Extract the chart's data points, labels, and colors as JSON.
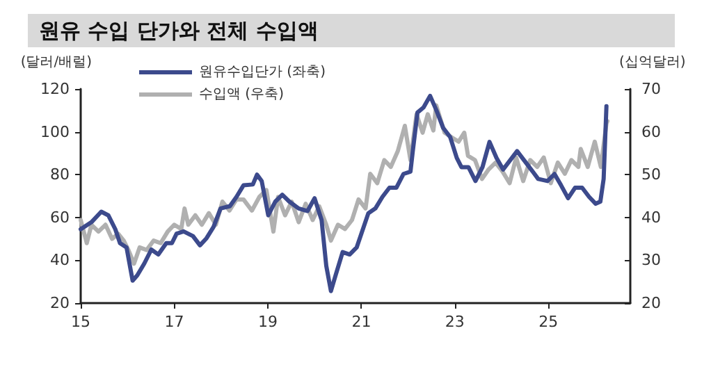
{
  "chart_data": {
    "type": "line",
    "title": "원유 수입 단가와 전체 수입액",
    "ylabel": "(달러/배럴)",
    "y2label": "(십억달러)",
    "xlim": [
      2015,
      2026.75
    ],
    "xticks": [
      {
        "value": 2015,
        "label": "15"
      },
      {
        "value": 2017,
        "label": "17"
      },
      {
        "value": 2019,
        "label": "19"
      },
      {
        "value": 2021,
        "label": "21"
      },
      {
        "value": 2023,
        "label": "23"
      },
      {
        "value": 2025,
        "label": "25"
      }
    ],
    "ylim": [
      20,
      120
    ],
    "yticks": [
      20,
      40,
      60,
      80,
      100,
      120
    ],
    "y2lim": [
      20,
      70
    ],
    "y2ticks": [
      20,
      30,
      40,
      50,
      60,
      70
    ],
    "legend": "top left",
    "grid": false,
    "marker": "none",
    "line_style": "solid",
    "series": [
      {
        "name": "수입액 (우축)",
        "color": "#b0b0b0",
        "axis": "y2",
        "x": [
          2015.0,
          2015.13,
          2015.23,
          2015.38,
          2015.53,
          2015.67,
          2015.8,
          2015.92,
          2016.02,
          2016.14,
          2016.26,
          2016.41,
          2016.56,
          2016.71,
          2016.86,
          2017.0,
          2017.15,
          2017.22,
          2017.3,
          2017.45,
          2017.59,
          2017.74,
          2017.89,
          2018.03,
          2018.18,
          2018.33,
          2018.48,
          2018.66,
          2018.82,
          2018.97,
          2019.12,
          2019.22,
          2019.37,
          2019.51,
          2019.66,
          2019.81,
          2019.96,
          2020.1,
          2020.25,
          2020.35,
          2020.5,
          2020.65,
          2020.8,
          2020.94,
          2021.09,
          2021.19,
          2021.34,
          2021.49,
          2021.63,
          2021.78,
          2021.93,
          2022.05,
          2022.18,
          2022.31,
          2022.42,
          2022.54,
          2022.6,
          2022.78,
          2022.93,
          2023.08,
          2023.2,
          2023.28,
          2023.43,
          2023.58,
          2023.72,
          2023.87,
          2024.02,
          2024.17,
          2024.31,
          2024.46,
          2024.61,
          2024.76,
          2024.9,
          2025.05,
          2025.2,
          2025.35,
          2025.49,
          2025.64,
          2025.69,
          2025.84,
          2025.99,
          2026.12,
          2026.24,
          2026.26
        ],
        "values": [
          39.4,
          34,
          38.3,
          36.7,
          38.3,
          35,
          36.2,
          34.6,
          32.4,
          29.2,
          33,
          32.4,
          34.6,
          34,
          36.7,
          38.3,
          37.3,
          42.1,
          38.3,
          40.5,
          38.3,
          41,
          38.3,
          43.7,
          41.6,
          44.2,
          44.2,
          41.6,
          44.8,
          46.4,
          36.7,
          44.8,
          40.5,
          43.7,
          38.9,
          43.2,
          39.4,
          42.6,
          38.3,
          34.6,
          38.3,
          37.3,
          39.4,
          44.2,
          42.1,
          50.2,
          48,
          53.4,
          51.8,
          55.5,
          61.4,
          53.4,
          64.1,
          59.8,
          64.1,
          60.3,
          66.2,
          59.8,
          58.7,
          57.7,
          59.8,
          54.4,
          53.4,
          49,
          51.2,
          52.8,
          50.7,
          48,
          54,
          48.5,
          53.4,
          51.8,
          54,
          48,
          52.8,
          50.2,
          53.4,
          51.8,
          56,
          51.8,
          57.7,
          51.8,
          62,
          62.5
        ]
      },
      {
        "name": "원유수입단가 (좌축)",
        "color": "#3c4a8c",
        "axis": "y",
        "x": [
          2015.0,
          2015.23,
          2015.44,
          2015.59,
          2015.74,
          2015.84,
          2015.98,
          2016.11,
          2016.21,
          2016.36,
          2016.51,
          2016.66,
          2016.83,
          2016.95,
          2017.05,
          2017.2,
          2017.4,
          2017.55,
          2017.69,
          2017.84,
          2017.99,
          2018.19,
          2018.33,
          2018.48,
          2018.68,
          2018.77,
          2018.87,
          2019.01,
          2019.16,
          2019.31,
          2019.46,
          2019.66,
          2019.85,
          2020.0,
          2020.15,
          2020.25,
          2020.35,
          2020.45,
          2020.6,
          2020.75,
          2020.9,
          2021.0,
          2021.15,
          2021.3,
          2021.45,
          2021.6,
          2021.75,
          2021.9,
          2022.05,
          2022.1,
          2022.2,
          2022.33,
          2022.47,
          2022.6,
          2022.75,
          2022.9,
          2023.04,
          2023.14,
          2023.29,
          2023.44,
          2023.59,
          2023.74,
          2023.89,
          2024.03,
          2024.18,
          2024.33,
          2024.48,
          2024.63,
          2024.78,
          2024.98,
          2025.13,
          2025.27,
          2025.42,
          2025.57,
          2025.72,
          2025.87,
          2026.01,
          2026.11,
          2026.18,
          2026.24
        ],
        "values": [
          54.5,
          57.8,
          62.7,
          61,
          54.5,
          48,
          46,
          30.5,
          33,
          38.5,
          45,
          42.7,
          48,
          48,
          52.4,
          53.5,
          51.3,
          47,
          50.3,
          55.6,
          64.2,
          65.3,
          69.6,
          75,
          75.4,
          80,
          77,
          61,
          67.4,
          70.6,
          67.4,
          64.2,
          63,
          69,
          58.8,
          37.4,
          25.6,
          33,
          43.8,
          42.7,
          46,
          52.4,
          62,
          64.2,
          69.6,
          73.9,
          73.9,
          80.3,
          81.4,
          91,
          109,
          111.4,
          116.8,
          110.3,
          101.8,
          97.5,
          87.8,
          83.5,
          83.5,
          77,
          83.5,
          95.3,
          87.8,
          82.4,
          86.7,
          91,
          86.7,
          82.4,
          78,
          77,
          80.3,
          75,
          69,
          73.9,
          73.9,
          69.6,
          66.4,
          67.4,
          78,
          112
        ]
      }
    ]
  }
}
